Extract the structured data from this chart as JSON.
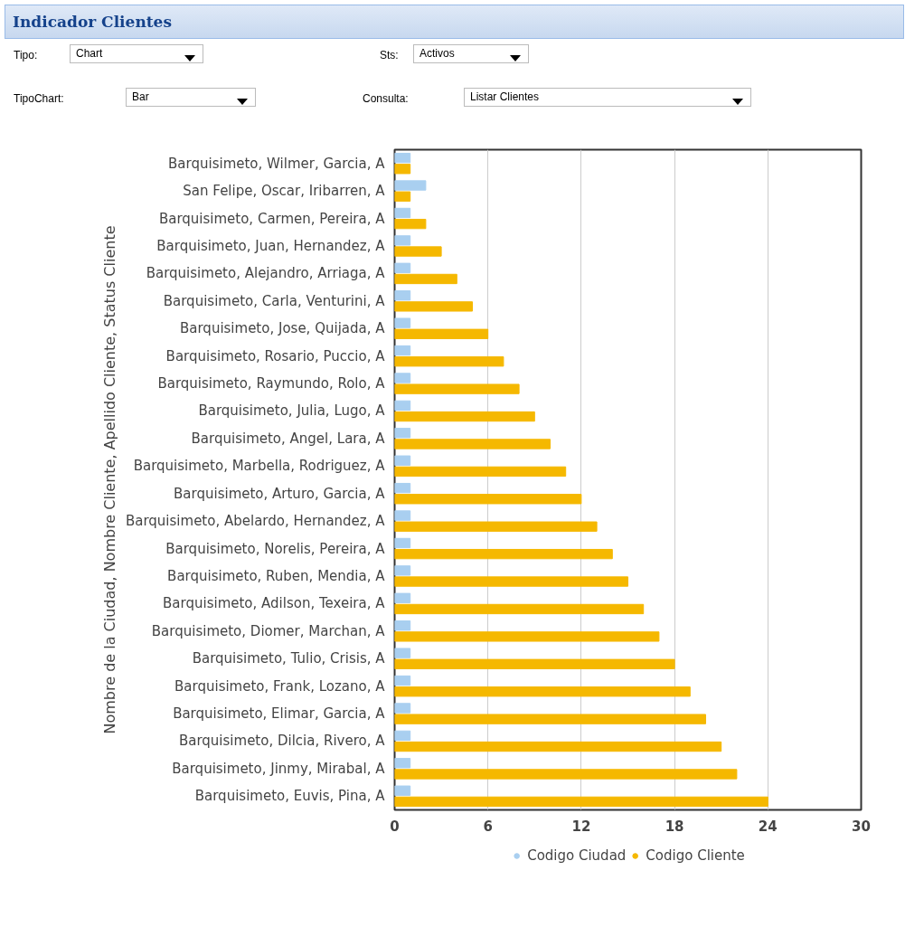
{
  "chart_data": {
    "type": "bar",
    "orientation": "horizontal",
    "title": "Indicador Clientes",
    "annotations": [
      "Tipo:",
      "Chart",
      "Sts:",
      "Activos",
      "TipoChart:",
      "Bar",
      "Consulta:",
      "Listar Clientes"
    ],
    "ylabel": "Nombre de la Ciudad, Nombre Cliente, Apellido Cliente, Status Cliente",
    "categories": [
      "Barquisimeto, Wilmer, Garcia, A",
      "San Felipe, Oscar, Iribarren, A",
      "Barquisimeto, Carmen, Pereira, A",
      "Barquisimeto, Juan, Hernandez, A",
      "Barquisimeto, Alejandro, Arriaga, A",
      "Barquisimeto, Carla, Venturini, A",
      "Barquisimeto, Jose, Quijada, A",
      "Barquisimeto, Rosario, Puccio, A",
      "Barquisimeto, Raymundo, Rolo, A",
      "Barquisimeto, Julia, Lugo, A",
      "Barquisimeto, Angel, Lara, A",
      "Barquisimeto, Marbella, Rodriguez, A",
      "Barquisimeto, Arturo, Garcia, A",
      "Barquisimeto, Abelardo, Hernandez, A",
      "Barquisimeto, Norelis, Pereira, A",
      "Barquisimeto, Ruben, Mendia, A",
      "Barquisimeto, Adilson, Texeira, A",
      "Barquisimeto, Diomer, Marchan, A",
      "Barquisimeto, Tulio, Crisis, A",
      "Barquisimeto, Frank, Lozano, A",
      "Barquisimeto, Elimar, Garcia, A",
      "Barquisimeto, Dilcia, Rivero, A",
      "Barquisimeto, Jinmy, Mirabal, A",
      "Barquisimeto, Euvis, Pina, A"
    ],
    "series": [
      {
        "name": "Codigo Ciudad",
        "color": "#a9cff0",
        "values": [
          1,
          2,
          1,
          1,
          1,
          1,
          1,
          1,
          1,
          1,
          1,
          1,
          1,
          1,
          1,
          1,
          1,
          1,
          1,
          1,
          1,
          1,
          1,
          1
        ]
      },
      {
        "name": "Codigo Cliente",
        "color": "#f5b800",
        "values": [
          1,
          1,
          2,
          3,
          4,
          5,
          6,
          7,
          8,
          9,
          10,
          11,
          12,
          13,
          14,
          15,
          16,
          17,
          18,
          19,
          20,
          21,
          22,
          24
        ]
      }
    ],
    "xlim": [
      0,
      30
    ],
    "xticks": [
      0,
      6,
      12,
      18,
      24,
      30
    ],
    "grid": "x",
    "legend": "bottom"
  }
}
